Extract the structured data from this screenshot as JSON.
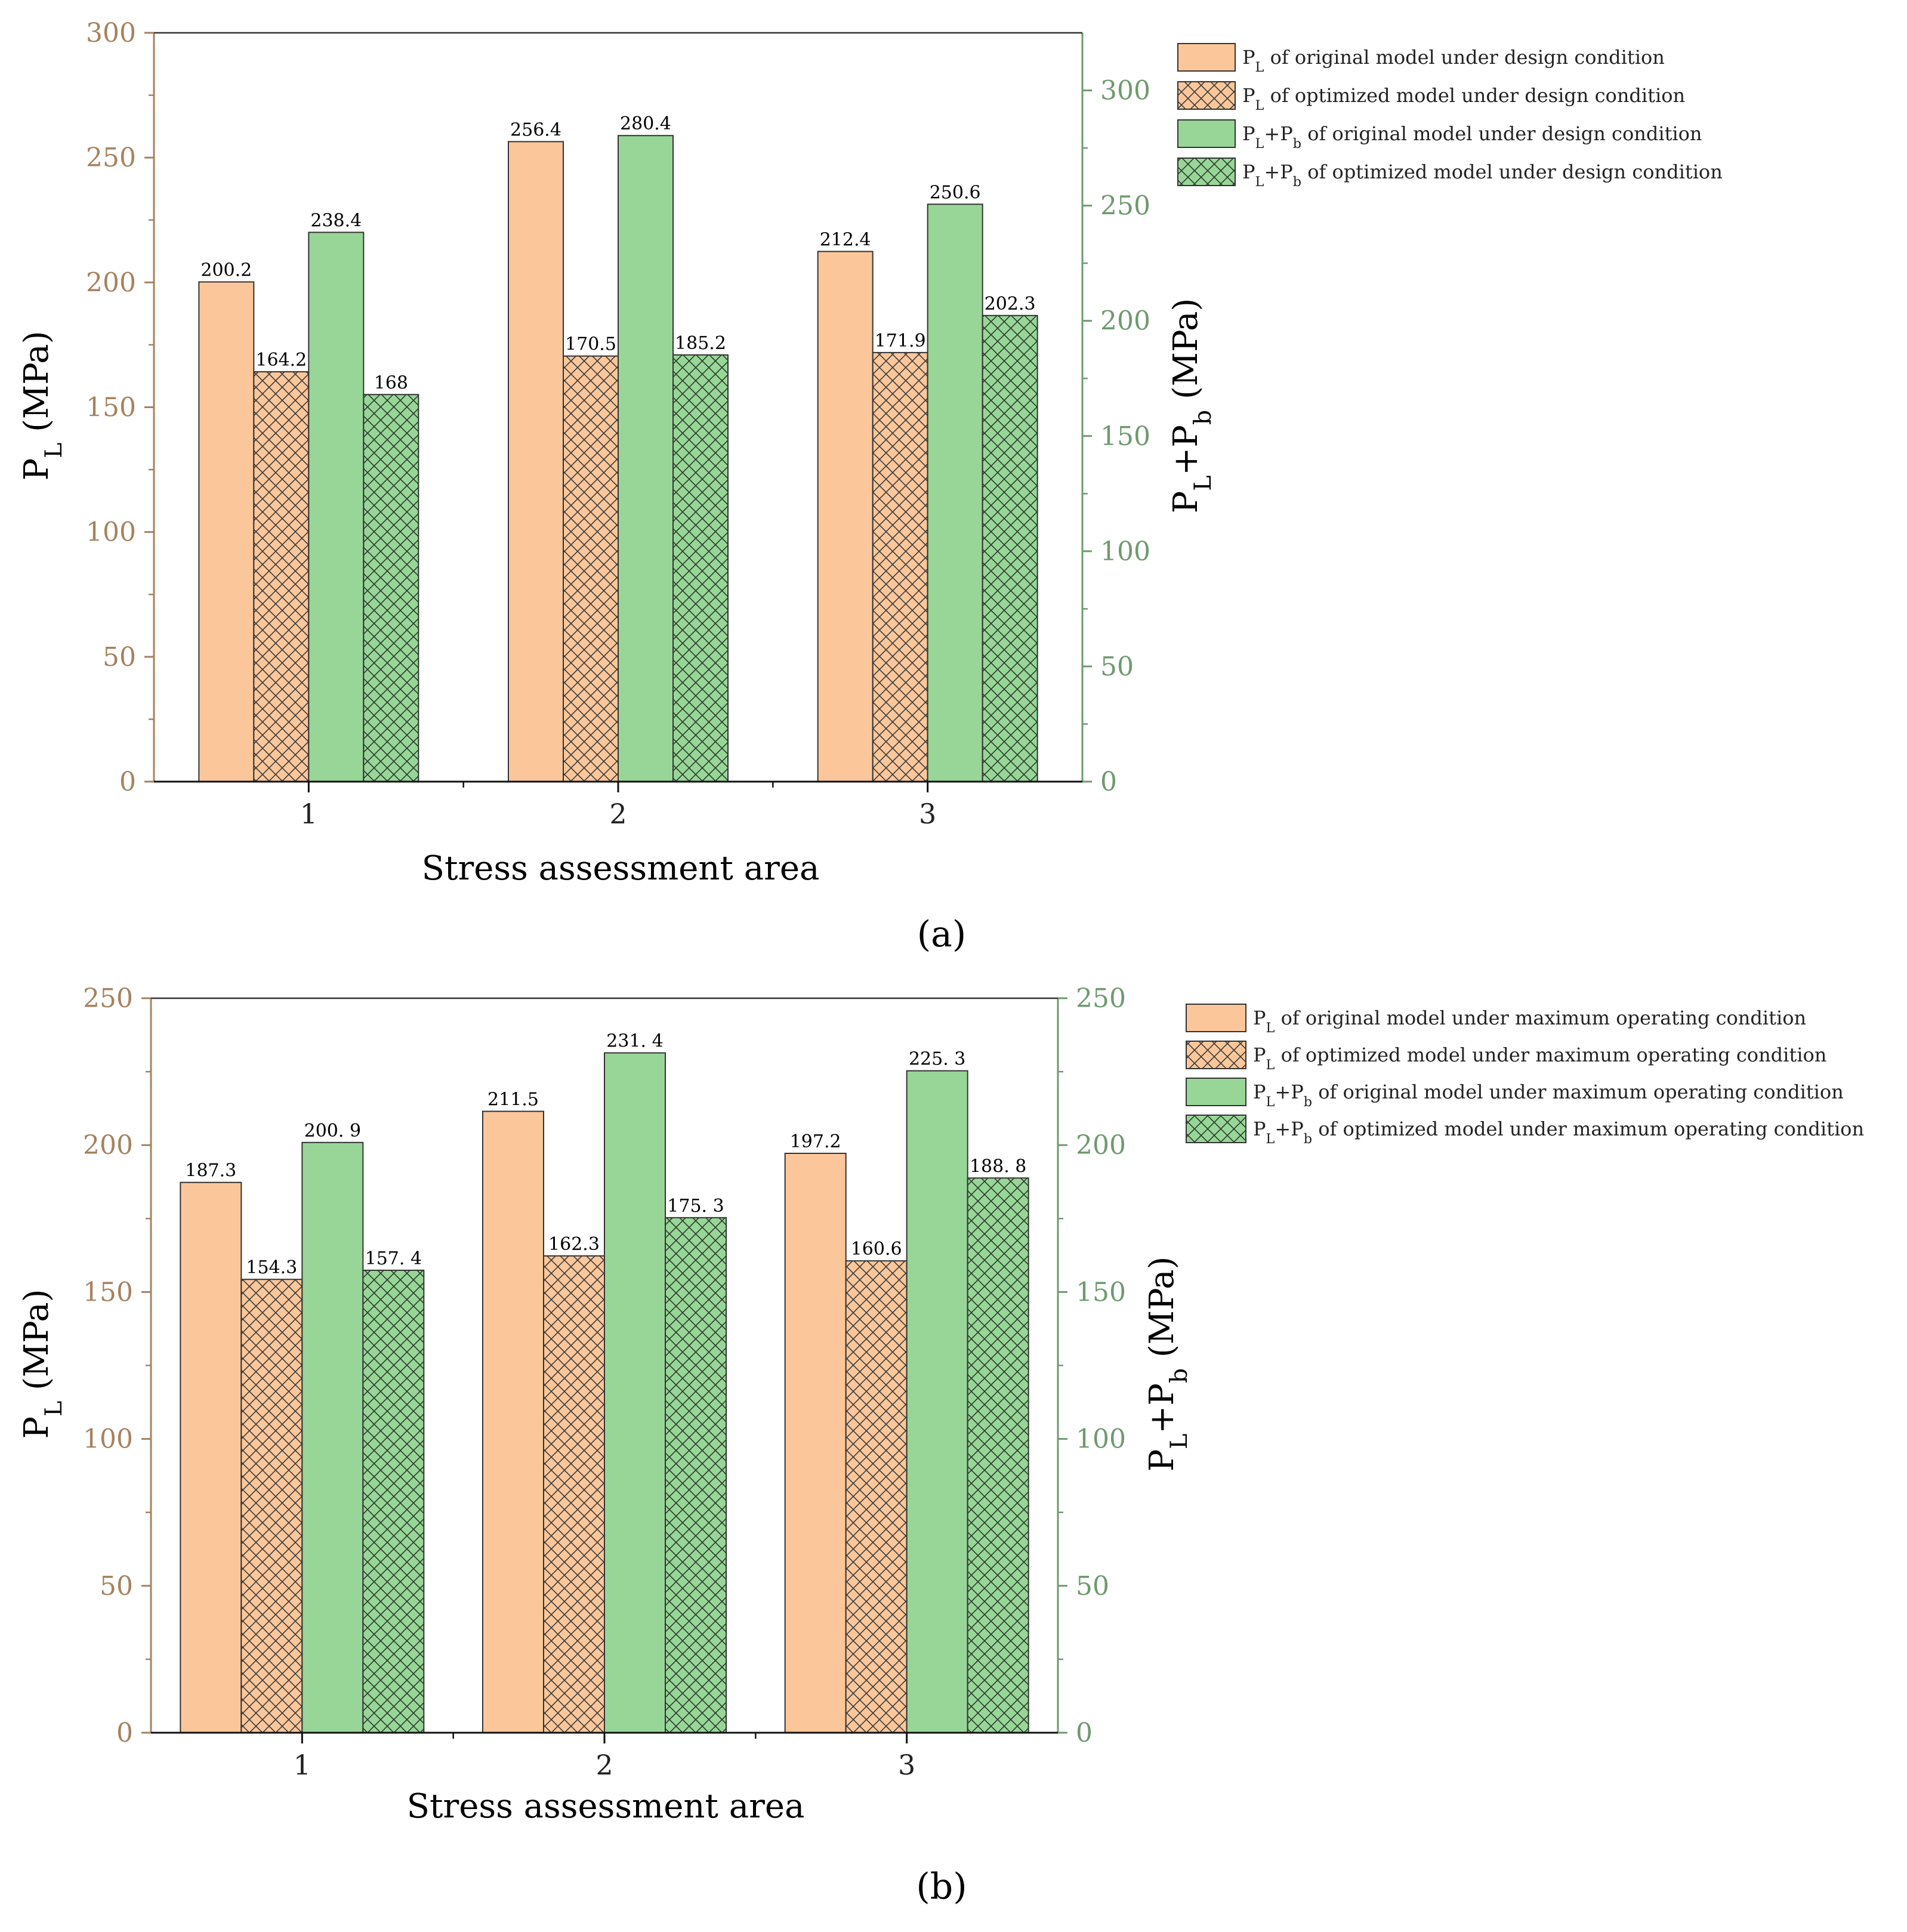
{
  "chart_data": [
    {
      "type": "bar",
      "panel_label": "(a)",
      "categories": [
        "1",
        "2",
        "3"
      ],
      "xlabel": "Stress assessment area",
      "ylabel": "P_L (MPa)",
      "ylabel2": "P_L+P_b (MPa)",
      "ylim": [
        0,
        300
      ],
      "ylim2": [
        0,
        325
      ],
      "yticks": [
        "0",
        "50",
        "100",
        "150",
        "200",
        "250",
        "300"
      ],
      "yticks2": [
        "0",
        "50",
        "100",
        "150",
        "200",
        "250",
        "300"
      ],
      "series": [
        {
          "name": "P_L of original model under design condition",
          "legend_main": "P",
          "legend_sub": "L",
          "legend_rest": " of original model under design condition",
          "axis": "left",
          "style": "orange-solid",
          "values": [
            200.2,
            256.4,
            212.4
          ],
          "labels": [
            "200.2",
            "256.4",
            "212.4"
          ]
        },
        {
          "name": "P_L of optimized model under design condition",
          "legend_main": "P",
          "legend_sub": "L",
          "legend_rest": " of optimized model under design condition",
          "axis": "left",
          "style": "orange-hatch",
          "values": [
            164.2,
            170.5,
            171.9
          ],
          "labels": [
            "164.2",
            "170.5",
            "171.9"
          ]
        },
        {
          "name": "P_L+P_b of original model under design condition",
          "legend_main": "P",
          "legend_sub": "L",
          "legend_mid": "+P",
          "legend_sub2": "b",
          "legend_rest": " of original model under design condition",
          "axis": "right",
          "style": "green-solid",
          "values": [
            238.4,
            280.4,
            250.6
          ],
          "labels": [
            "238.4",
            "280.4",
            "250.6"
          ]
        },
        {
          "name": "P_L+P_b of optimized model under design condition",
          "legend_main": "P",
          "legend_sub": "L",
          "legend_mid": "+P",
          "legend_sub2": "b",
          "legend_rest": " of optimized model under design condition",
          "axis": "right",
          "style": "green-hatch",
          "values": [
            168,
            185.2,
            202.3
          ],
          "labels": [
            "168",
            "185.2",
            "202.3"
          ]
        }
      ]
    },
    {
      "type": "bar",
      "panel_label": "(b)",
      "categories": [
        "1",
        "2",
        "3"
      ],
      "xlabel": "Stress assessment area",
      "ylabel": "P_L (MPa)",
      "ylabel2": "P_L+P_b (MPa)",
      "ylim": [
        0,
        250
      ],
      "ylim2": [
        0,
        250
      ],
      "yticks": [
        "0",
        "50",
        "100",
        "150",
        "200",
        "250"
      ],
      "yticks2": [
        "0",
        "50",
        "100",
        "150",
        "200",
        "250"
      ],
      "series": [
        {
          "name": "P_L of original model under maximum operating condition",
          "legend_main": "P",
          "legend_sub": "L",
          "legend_rest": " of original model under maximum operating condition",
          "axis": "left",
          "style": "orange-solid",
          "values": [
            187.3,
            211.5,
            197.2
          ],
          "labels": [
            "187.3",
            "211.5",
            "197.2"
          ]
        },
        {
          "name": "P_L of optimized model under maximum operating condition",
          "legend_main": "P",
          "legend_sub": "L",
          "legend_rest": " of optimized model under maximum operating condition",
          "axis": "left",
          "style": "orange-hatch",
          "values": [
            154.3,
            162.3,
            160.6
          ],
          "labels": [
            "154.3",
            "162.3",
            "160.6"
          ]
        },
        {
          "name": "P_L+P_b of original model under maximum operating condition",
          "legend_main": "P",
          "legend_sub": "L",
          "legend_mid": "+P",
          "legend_sub2": "b",
          "legend_rest": " of original model under maximum operating condition",
          "axis": "right",
          "style": "green-solid",
          "values": [
            200.9,
            231.4,
            225.3
          ],
          "labels": [
            "200. 9",
            "231. 4",
            "225. 3"
          ]
        },
        {
          "name": "P_L+P_b of optimized model under maximum operating condition",
          "legend_main": "P",
          "legend_sub": "L",
          "legend_mid": "+P",
          "legend_sub2": "b",
          "legend_rest": " of optimized model under maximum operating condition",
          "axis": "right",
          "style": "green-hatch",
          "values": [
            157.4,
            175.3,
            188.8
          ],
          "labels": [
            "157. 4",
            "175. 3",
            "188. 8"
          ]
        }
      ]
    }
  ],
  "colors": {
    "orange": "#fbc79a",
    "green": "#98d698",
    "left_axis": "#a6825f",
    "right_axis": "#6e9a6e",
    "bar_stroke": "#333333",
    "hatch": "#3a3a3a"
  }
}
